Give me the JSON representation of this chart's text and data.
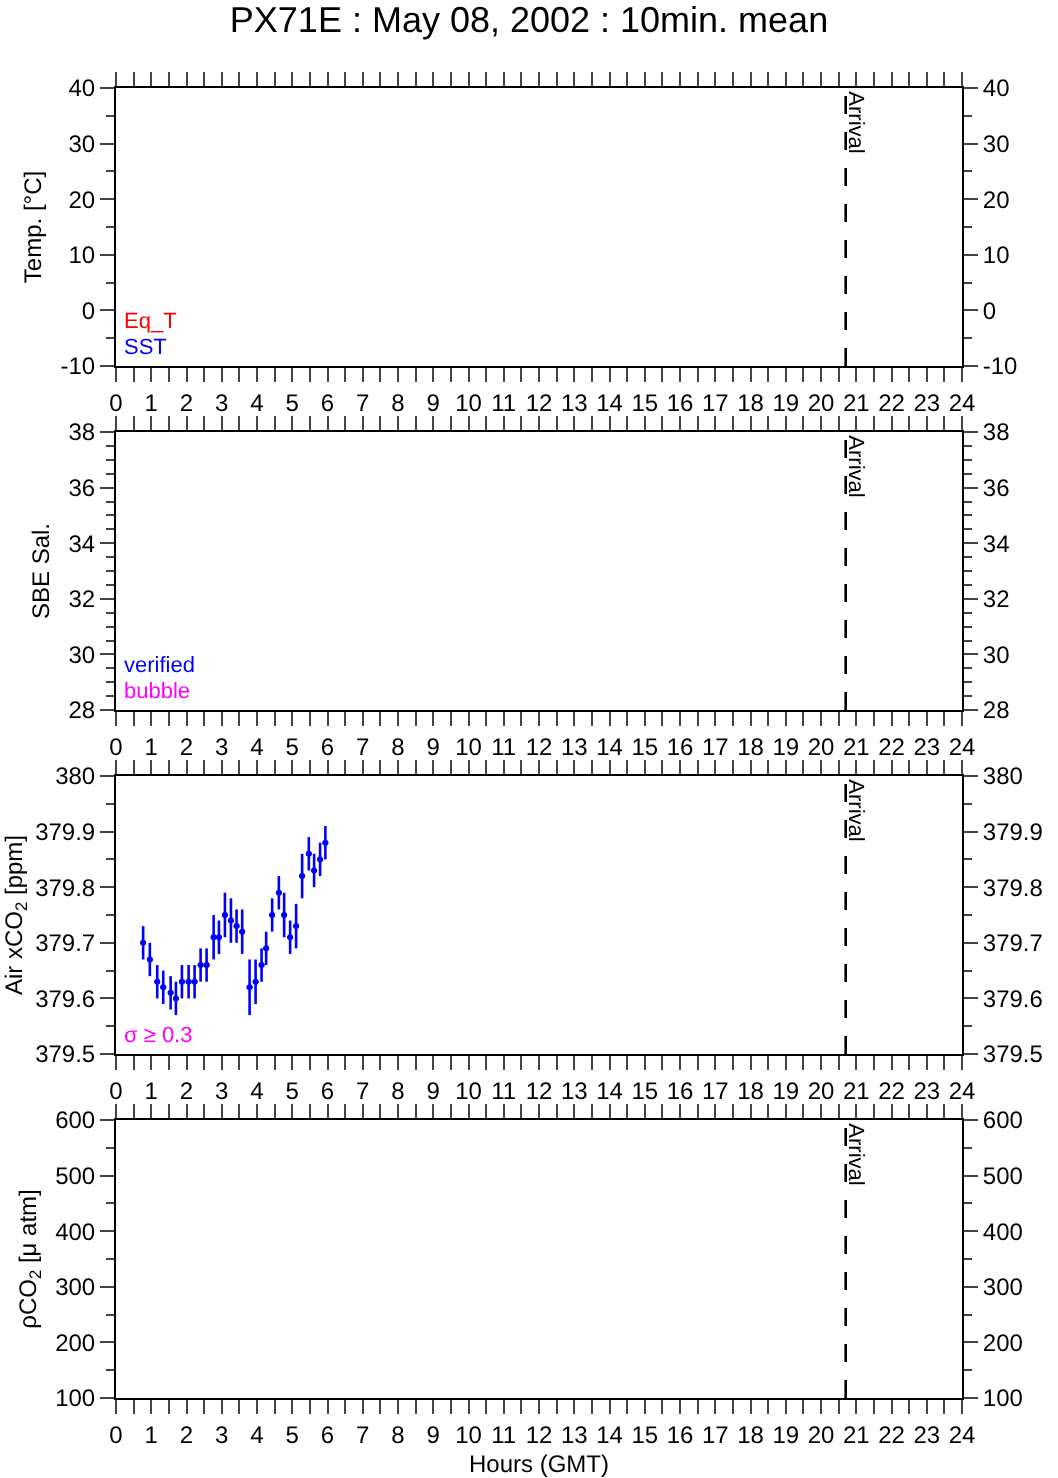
{
  "chart_data": [
    {
      "type": "line",
      "title": "PX71E : May 08, 2002 : 10min. mean",
      "ylabel": "Temp. [°C]",
      "annotations": [
        "Eq_T",
        "SST"
      ],
      "xlim": [
        0,
        24
      ],
      "xticks": [
        0,
        1,
        2,
        3,
        4,
        5,
        6,
        7,
        8,
        9,
        10,
        11,
        12,
        13,
        14,
        15,
        16,
        17,
        18,
        19,
        20,
        21,
        22,
        23,
        24
      ],
      "ylim": [
        -10,
        40
      ],
      "yticks": [
        -10,
        0,
        10,
        20,
        30,
        40
      ],
      "y2lim": [
        -10,
        40
      ],
      "y2ticks": [
        -10,
        0,
        10,
        20,
        30,
        40
      ],
      "ref_lines": [
        {
          "axis": "x",
          "value": 20.7,
          "label": "Arrival",
          "line_style": "dashed"
        }
      ],
      "grid": false
    },
    {
      "type": "scatter",
      "ylabel": "SBE Sal.",
      "annotations": [
        "verified",
        "bubble"
      ],
      "xlim": [
        0,
        24
      ],
      "xticks": [
        0,
        1,
        2,
        3,
        4,
        5,
        6,
        7,
        8,
        9,
        10,
        11,
        12,
        13,
        14,
        15,
        16,
        17,
        18,
        19,
        20,
        21,
        22,
        23,
        24
      ],
      "ylim": [
        28,
        38
      ],
      "yticks": [
        28,
        30,
        32,
        34,
        36,
        38
      ],
      "y2lim": [
        28,
        38
      ],
      "y2ticks": [
        28,
        30,
        32,
        34,
        36,
        38
      ],
      "ref_lines": [
        {
          "axis": "x",
          "value": 20.7,
          "label": "Arrival",
          "line_style": "dashed"
        }
      ],
      "grid": false
    },
    {
      "type": "scatter",
      "ylabel": "Air xCO$_{2}$ [ppm]",
      "annotations": [
        "σ ≥ 0.3"
      ],
      "series": [
        {
          "color": "#0000ff",
          "x": [
            0.77,
            0.96,
            1.17,
            1.34,
            1.55,
            1.7,
            1.87,
            2.06,
            2.23,
            2.4,
            2.57,
            2.77,
            2.92,
            3.09,
            3.26,
            3.42,
            3.58,
            3.79,
            3.96,
            4.13,
            4.26,
            4.43,
            4.62,
            4.77,
            4.94,
            5.11,
            5.28,
            5.47,
            5.62,
            5.79,
            5.94
          ],
          "values": [
            379.7,
            379.67,
            379.63,
            379.62,
            379.61,
            379.6,
            379.63,
            379.63,
            379.63,
            379.66,
            379.66,
            379.71,
            379.71,
            379.75,
            379.74,
            379.73,
            379.72,
            379.62,
            379.63,
            379.66,
            379.69,
            379.75,
            379.79,
            379.75,
            379.71,
            379.73,
            379.82,
            379.86,
            379.83,
            379.85,
            379.88
          ],
          "xerrors": [
            0.08,
            0.08,
            0.08,
            0.08,
            0.08,
            0.08,
            0.08,
            0.08,
            0.08,
            0.08,
            0.08,
            0.08,
            0.08,
            0.08,
            0.08,
            0.08,
            0.08,
            0.08,
            0.08,
            0.08,
            0.08,
            0.08,
            0.08,
            0.08,
            0.08,
            0.08,
            0.08,
            0.08,
            0.08,
            0.08,
            0.08
          ],
          "errors": [
            0.03,
            0.03,
            0.03,
            0.03,
            0.03,
            0.03,
            0.03,
            0.03,
            0.03,
            0.03,
            0.03,
            0.04,
            0.03,
            0.04,
            0.04,
            0.03,
            0.04,
            0.05,
            0.04,
            0.03,
            0.03,
            0.03,
            0.03,
            0.04,
            0.03,
            0.04,
            0.04,
            0.03,
            0.03,
            0.03,
            0.03
          ]
        }
      ],
      "xlim": [
        0,
        24
      ],
      "xticks": [
        0,
        1,
        2,
        3,
        4,
        5,
        6,
        7,
        8,
        9,
        10,
        11,
        12,
        13,
        14,
        15,
        16,
        17,
        18,
        19,
        20,
        21,
        22,
        23,
        24
      ],
      "marker": "circle",
      "ylim": [
        379.5,
        380
      ],
      "yticks": [
        379.5,
        379.6,
        379.7,
        379.8,
        379.9,
        380
      ],
      "y2lim": [
        379.5,
        380
      ],
      "y2ticks": [
        379.5,
        379.6,
        379.7,
        379.8,
        379.9,
        380
      ],
      "ref_lines": [
        {
          "axis": "x",
          "value": 20.7,
          "label": "Arrival",
          "line_style": "dashed"
        }
      ],
      "grid": false
    },
    {
      "type": "line",
      "ylabel": "ρCO$_{2}$ [μ atm]",
      "xlabel": "Hours (GMT)",
      "xlim": [
        0,
        24
      ],
      "xticks": [
        0,
        1,
        2,
        3,
        4,
        5,
        6,
        7,
        8,
        9,
        10,
        11,
        12,
        13,
        14,
        15,
        16,
        17,
        18,
        19,
        20,
        21,
        22,
        23,
        24
      ],
      "ylim": [
        100,
        600
      ],
      "yticks": [
        100,
        200,
        300,
        400,
        500,
        600
      ],
      "y2lim": [
        100,
        600
      ],
      "y2ticks": [
        100,
        200,
        300,
        400,
        500,
        600
      ],
      "ref_lines": [
        {
          "axis": "x",
          "value": 20.7,
          "label": "Arrival",
          "line_style": "dashed"
        }
      ],
      "grid": false
    }
  ]
}
